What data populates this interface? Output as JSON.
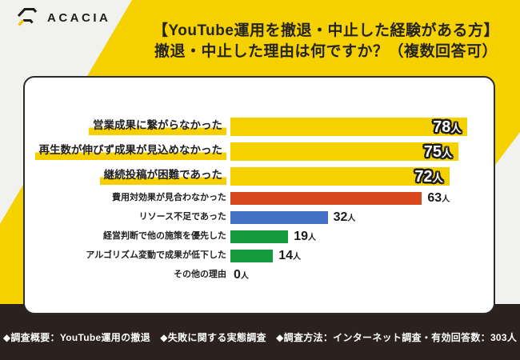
{
  "header": {
    "logo_text": "ACACIA",
    "title_line1": "【YouTube運用を撤退・中止した経験がある方】",
    "title_line2": "撤退・中止した理由は何ですか？（複数回答可）"
  },
  "chart_data": {
    "type": "bar",
    "orientation": "horizontal",
    "unit": "人",
    "value_range": [
      0,
      78
    ],
    "categories": [
      "営業成果に繋がらなかった",
      "再生数が伸びず成果が見込めなかった",
      "継続投稿が困難であった",
      "費用対効果が見合わなかった",
      "リソース不足であった",
      "経営判断で他の施策を優先した",
      "アルゴリズム変動で成果が低下した",
      "その他の理由"
    ],
    "values": [
      78,
      75,
      72,
      63,
      32,
      19,
      14,
      0
    ],
    "rows": [
      {
        "label": "営業成果に繋がらなかった",
        "value": 78,
        "color": "#F5D100",
        "emphasized": true
      },
      {
        "label": "再生数が伸びず成果が見込めなかった",
        "value": 75,
        "color": "#F5D100",
        "emphasized": true
      },
      {
        "label": "継続投稿が困難であった",
        "value": 72,
        "color": "#F5D100",
        "emphasized": true
      },
      {
        "label": "費用対効果が見合わなかった",
        "value": 63,
        "color": "#D9481C",
        "emphasized": false
      },
      {
        "label": "リソース不足であった",
        "value": 32,
        "color": "#4470C4",
        "emphasized": false
      },
      {
        "label": "経営判断で他の施策を優先した",
        "value": 19,
        "color": "#149B3C",
        "emphasized": false
      },
      {
        "label": "アルゴリズム変動で成果が低下した",
        "value": 14,
        "color": "#149B3C",
        "emphasized": false
      },
      {
        "label": "その他の理由",
        "value": 0,
        "color": null,
        "emphasized": false
      }
    ]
  },
  "footer": {
    "text": "◆調査概要：YouTube運用の撤退　◆失敗に関する実態調査　◆調査方法：インターネット調査・有効回答数：303人"
  },
  "colors": {
    "accent_yellow": "#F5D100",
    "background_gray": "#F1F1EF",
    "footer_background": "#2B2220",
    "card_border": "#2A2A2A",
    "bar_orange": "#D9481C",
    "bar_blue": "#4470C4",
    "bar_green": "#149B3C"
  }
}
